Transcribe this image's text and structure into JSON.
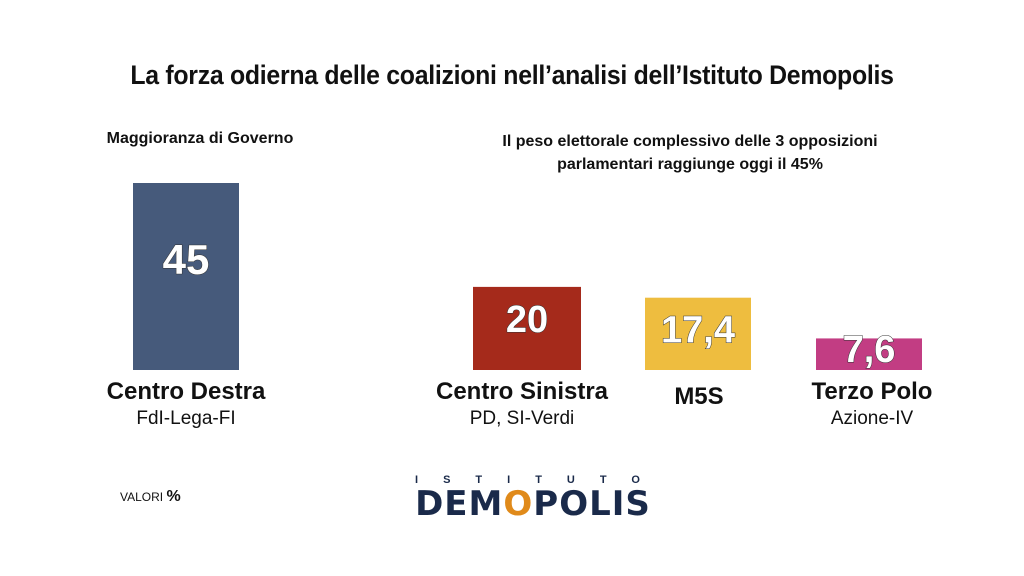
{
  "title": "La forza odierna delle coalizioni nell’analisi dell’Istituto Demopolis",
  "subhead_left": "Maggioranza di Governo",
  "subhead_right_line1": "Il peso elettorale complessivo delle 3 opposizioni",
  "subhead_right_line2": "parlamentari raggiunge oggi il 45%",
  "valori_label": "VALORI",
  "valori_unit": "%",
  "logo": {
    "top_text": "ISTITUTO",
    "main_before": "DEM",
    "main_o": "O",
    "main_after": "POLIS"
  },
  "chart_data": {
    "type": "bar",
    "categories": [
      "Centro Destra",
      "Centro Sinistra",
      "M5S",
      "Terzo Polo"
    ],
    "subtitles": [
      "FdI-Lega-FI",
      "PD, SI-Verdi",
      "",
      "Azione-IV"
    ],
    "values": [
      45,
      20,
      17.4,
      7.6
    ],
    "value_labels": [
      "45",
      "20",
      "17,4",
      "7,6"
    ],
    "colors": [
      "#465a7b",
      "#a52a1b",
      "#eebd3f",
      "#c23d83"
    ]
  }
}
